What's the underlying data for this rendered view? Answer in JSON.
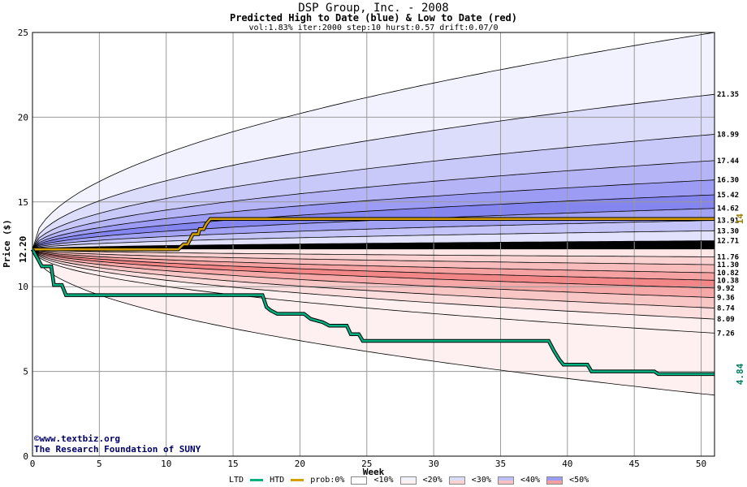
{
  "chart_data": {
    "type": "area",
    "title": "DSP Group, Inc. - 2008",
    "subtitle": "Predicted High to Date (blue) &  Low to Date (red)",
    "params": "vol:1.83% iter:2000 step:10 hurst:0.57 drift:0.07/0",
    "xlabel": "Week",
    "ylabel": "Price ($)",
    "xlim": [
      0,
      51
    ],
    "ylim": [
      0,
      25
    ],
    "x_ticks": [
      0,
      5,
      10,
      15,
      20,
      25,
      30,
      35,
      40,
      45,
      50
    ],
    "y_ticks": [
      0,
      5,
      10,
      15,
      20,
      25
    ],
    "grid": true,
    "start_price": 12.2,
    "start_label": "12.20",
    "high_ends": [
      21.35,
      18.99,
      17.44,
      16.3,
      15.42,
      14.62,
      13.91,
      13.3,
      12.71
    ],
    "high_end_labels": [
      "21.35",
      "18.99",
      "17.44",
      "16.30",
      "15.42",
      "14.62",
      "13.91",
      "13.30",
      "12.71"
    ],
    "low_ends": [
      11.76,
      11.3,
      10.82,
      10.38,
      9.92,
      9.36,
      8.74,
      8.09,
      7.26
    ],
    "low_end_labels": [
      "11.76",
      "11.30",
      "10.82",
      "10.38",
      "9.92",
      "9.36",
      "8.74",
      "8.09",
      "7.26"
    ],
    "outer_high_end": 25,
    "outer_low_end": 3.6,
    "band_fills_high": [
      "#f2f2fe",
      "#dcdcfb",
      "#c9c9f9",
      "#b4b4f7",
      "#9c9cf4",
      "#8585f0",
      "#a2a2f4",
      "#c4c4f8",
      "#e2e2fc"
    ],
    "band_fills_low": [
      "#fde6e6",
      "#fbd2d2",
      "#f9bcbc",
      "#f6a2a2",
      "#f38787",
      "#f6a8a8",
      "#f9c6c6",
      "#fcdede",
      "#fef0f0"
    ],
    "htd": {
      "name": "HTD",
      "color": "#d4a000",
      "x": [
        0,
        10.9,
        11.3,
        11.6,
        12,
        12.4,
        12.5,
        12.8,
        13,
        13.3,
        51
      ],
      "y": [
        12.2,
        12.2,
        12.5,
        12.5,
        13.1,
        13.1,
        13.4,
        13.4,
        13.7,
        14.0,
        14.0
      ],
      "end_label": "14"
    },
    "ltd": {
      "name": "LTD",
      "color": "#00b080",
      "x": [
        0,
        0.5,
        0.7,
        1.4,
        1.6,
        2.2,
        2.5,
        17.2,
        17.5,
        17.8,
        18.3,
        20.3,
        20.8,
        21.7,
        22.2,
        23.5,
        23.8,
        24.4,
        24.7,
        38.6,
        39.0,
        39.4,
        39.7,
        41.5,
        41.8,
        46.5,
        46.8,
        51
      ],
      "y": [
        12.2,
        11.5,
        11.2,
        11.2,
        10.1,
        10.1,
        9.5,
        9.5,
        8.8,
        8.6,
        8.4,
        8.4,
        8.1,
        7.9,
        7.7,
        7.7,
        7.2,
        7.2,
        6.8,
        6.8,
        6.2,
        5.7,
        5.4,
        5.4,
        5.0,
        5.0,
        4.84,
        4.84
      ],
      "end_label": "4.84"
    },
    "legend": {
      "ltd": "LTD",
      "htd": "HTD",
      "prob": "prob:0%",
      "items": [
        {
          "label": "<10%",
          "high": "#f2f2fe",
          "low": "#fef0f0"
        },
        {
          "label": "<20%",
          "high": "#dcdcfb",
          "low": "#fbd2d2"
        },
        {
          "label": "<30%",
          "high": "#c0c0f8",
          "low": "#f8c0c0"
        },
        {
          "label": "<40%",
          "high": "#9c9cf4",
          "low": "#f5a0a0"
        },
        {
          "label": "<50%",
          "high": "#7878ee",
          "low": "#f08080"
        }
      ]
    }
  },
  "credit": {
    "url": "©www.textbiz.org",
    "org": "The Research Foundation of SUNY"
  }
}
